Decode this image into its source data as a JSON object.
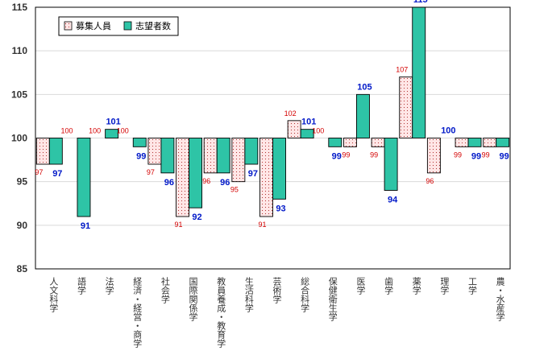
{
  "chart_data": {
    "type": "bar",
    "baseline": 100,
    "ylim": [
      85,
      115
    ],
    "yticks": [
      85,
      90,
      95,
      100,
      105,
      110,
      115
    ],
    "grid": true,
    "legend_placement": "top-left",
    "categories": [
      "人文科学",
      "語学",
      "法学",
      "経済・経営・商学",
      "社会学",
      "国際関係学",
      "教員養成・教育学",
      "生活科学",
      "芸術学",
      "総合科学",
      "保健衛生学",
      "医学",
      "歯学",
      "薬学",
      "理学",
      "工学",
      "農・水産学"
    ],
    "series": [
      {
        "name": "募集人員",
        "values": [
          97,
          100,
          100,
          100,
          97,
          91,
          96,
          95,
          91,
          102,
          100,
          99,
          99,
          107,
          96,
          99,
          99
        ]
      },
      {
        "name": "志望者数",
        "values": [
          97,
          91,
          101,
          99,
          96,
          92,
          96,
          97,
          93,
          101,
          99,
          105,
          94,
          115,
          100,
          99,
          99
        ]
      }
    ],
    "colors": {
      "series1_fill": "#ffe6e6",
      "series1_dots": "#b03030",
      "series2_fill": "#2ec4a6",
      "label1": "#d40000",
      "label2": "#0018c8",
      "grid": "#d9d9d9"
    }
  }
}
